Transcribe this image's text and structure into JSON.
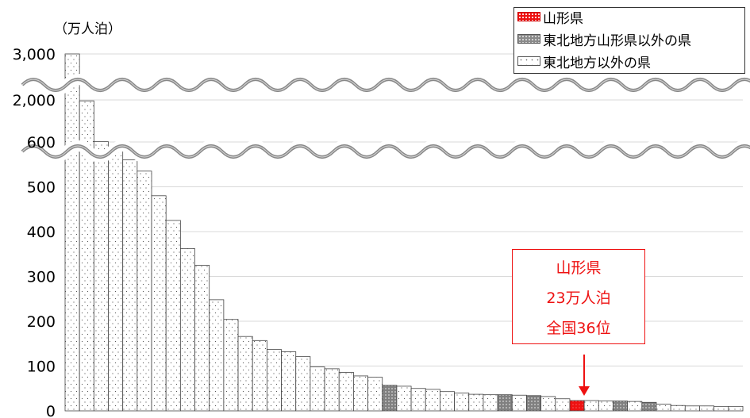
{
  "unit_label": "（万人泊）",
  "legend": [
    {
      "label": "山形県",
      "pattern": "yamagata"
    },
    {
      "label": "東北地方山形県以外の県",
      "pattern": "tohoku"
    },
    {
      "label": "東北地方以外の県",
      "pattern": "other"
    }
  ],
  "callout": {
    "line1": "山形県",
    "line2": "23万人泊",
    "line3": "全国36位"
  },
  "colors": {
    "yamagata": "#ee1111",
    "tohoku": "#8a8a8a",
    "other": "#ffffff",
    "grid": "#d9d9d9",
    "break": "#888888"
  },
  "chart_data": {
    "type": "bar",
    "title": "",
    "xlabel": "",
    "ylabel": "（万人泊）",
    "ylim": [
      0,
      600
    ],
    "axis_break": "600 → 2,000 → 3,000 (wavy break lines)",
    "y_ticks": [
      "0",
      "100",
      "200",
      "300",
      "400",
      "500",
      "600",
      "2,000",
      "3,000"
    ],
    "grid": true,
    "legend_position": "top-right",
    "series": [
      {
        "values": [
          3000,
          1970,
          610,
          580,
          560,
          535,
          480,
          425,
          362,
          325,
          248,
          204,
          166,
          157,
          137,
          132,
          121,
          98,
          94,
          86,
          78,
          75,
          57,
          55,
          50,
          48,
          43,
          40,
          37,
          36,
          36,
          35,
          34,
          32,
          27,
          23,
          23,
          22,
          22,
          21,
          19,
          15,
          12,
          11,
          11,
          10,
          10
        ],
        "categories_type": [
          "other",
          "other",
          "other",
          "other",
          "other",
          "other",
          "other",
          "other",
          "other",
          "other",
          "other",
          "other",
          "other",
          "other",
          "other",
          "other",
          "other",
          "other",
          "other",
          "other",
          "other",
          "other",
          "tohoku",
          "other",
          "other",
          "other",
          "other",
          "other",
          "other",
          "other",
          "tohoku",
          "other",
          "tohoku",
          "other",
          "other",
          "yamagata",
          "other",
          "other",
          "tohoku",
          "other",
          "tohoku",
          "other",
          "other",
          "other",
          "other",
          "other",
          "other"
        ]
      }
    ],
    "annotation": {
      "text": "山形県 23万人泊 全国36位",
      "target_rank": 36
    }
  }
}
